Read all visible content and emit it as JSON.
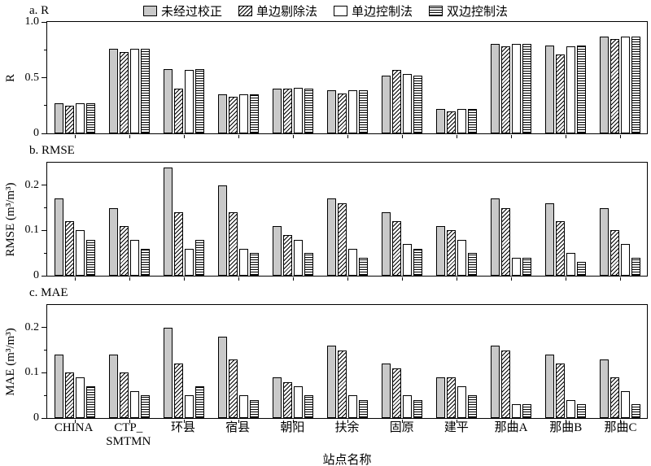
{
  "colors": {
    "bar_gray": "#c9c9c9",
    "bar_white": "#ffffff",
    "edge": "#000000"
  },
  "legend": {
    "items": [
      {
        "label": "未经过校正",
        "key": "uncorrected",
        "swatch": "solid-gray"
      },
      {
        "label": "单边剔除法",
        "key": "one-side-removal",
        "swatch": "diagonal-hatch"
      },
      {
        "label": "单边控制法",
        "key": "one-side-control",
        "swatch": "plain-white"
      },
      {
        "label": "双边控制法",
        "key": "two-side-control",
        "swatch": "horizontal-hatch"
      }
    ]
  },
  "xaxis": {
    "label": "站点名称",
    "tick_labels": [
      "CHINA",
      "CTP_\nSMTMN",
      "环县",
      "宿县",
      "朝阳",
      "扶余",
      "固原",
      "建平",
      "那曲A",
      "那曲B",
      "那曲C"
    ]
  },
  "chart_data": [
    {
      "type": "bar",
      "title": "a. R",
      "ylabel": "R",
      "ylim": [
        0,
        1.0
      ],
      "yticks": [
        0,
        0.5,
        1.0
      ],
      "ytick_labels": [
        "0",
        "0.5",
        "1.0"
      ],
      "yticks_minor": [
        0.25,
        0.75
      ],
      "grid": false,
      "legend_position": "top-center",
      "categories": [
        "CHINA",
        "CTP_SMTMN",
        "环县",
        "宿县",
        "朝阳",
        "扶余",
        "固原",
        "建平",
        "那曲A",
        "那曲B",
        "那曲C"
      ],
      "series": [
        {
          "name": "未经过校正",
          "key": "uncorrected",
          "values": [
            0.27,
            0.76,
            0.58,
            0.35,
            0.4,
            0.39,
            0.52,
            0.22,
            0.8,
            0.79,
            0.87
          ]
        },
        {
          "name": "单边剔除法",
          "key": "one-side-removal",
          "values": [
            0.25,
            0.73,
            0.4,
            0.33,
            0.4,
            0.36,
            0.57,
            0.2,
            0.78,
            0.71,
            0.85
          ]
        },
        {
          "name": "单边控制法",
          "key": "one-side-control",
          "values": [
            0.27,
            0.76,
            0.57,
            0.35,
            0.41,
            0.39,
            0.53,
            0.22,
            0.8,
            0.78,
            0.87
          ]
        },
        {
          "name": "双边控制法",
          "key": "two-side-control",
          "values": [
            0.27,
            0.76,
            0.58,
            0.35,
            0.4,
            0.39,
            0.52,
            0.22,
            0.8,
            0.79,
            0.87
          ]
        }
      ]
    },
    {
      "type": "bar",
      "title": "b. RMSE",
      "ylabel": "RMSE (m³/m³)",
      "ylim": [
        0,
        0.25
      ],
      "yticks": [
        0,
        0.1,
        0.2
      ],
      "ytick_labels": [
        "0",
        "0.1",
        "0.2"
      ],
      "yticks_minor": [
        0.05,
        0.15
      ],
      "grid": false,
      "categories": [
        "CHINA",
        "CTP_SMTMN",
        "环县",
        "宿县",
        "朝阳",
        "扶余",
        "固原",
        "建平",
        "那曲A",
        "那曲B",
        "那曲C"
      ],
      "series": [
        {
          "name": "未经过校正",
          "key": "uncorrected",
          "values": [
            0.17,
            0.15,
            0.24,
            0.2,
            0.11,
            0.17,
            0.14,
            0.11,
            0.17,
            0.16,
            0.15
          ]
        },
        {
          "name": "单边剔除法",
          "key": "one-side-removal",
          "values": [
            0.12,
            0.11,
            0.14,
            0.14,
            0.09,
            0.16,
            0.12,
            0.1,
            0.15,
            0.12,
            0.1
          ]
        },
        {
          "name": "单边控制法",
          "key": "one-side-control",
          "values": [
            0.1,
            0.08,
            0.06,
            0.06,
            0.08,
            0.06,
            0.07,
            0.08,
            0.04,
            0.05,
            0.07
          ]
        },
        {
          "name": "双边控制法",
          "key": "two-side-control",
          "values": [
            0.08,
            0.06,
            0.08,
            0.05,
            0.05,
            0.04,
            0.06,
            0.05,
            0.04,
            0.03,
            0.04
          ]
        }
      ]
    },
    {
      "type": "bar",
      "title": "c. MAE",
      "ylabel": "MAE (m³/m³)",
      "ylim": [
        0,
        0.25
      ],
      "yticks": [
        0,
        0.1,
        0.2
      ],
      "ytick_labels": [
        "0",
        "0.1",
        "0.2"
      ],
      "yticks_minor": [
        0.05,
        0.15
      ],
      "grid": false,
      "categories": [
        "CHINA",
        "CTP_SMTMN",
        "环县",
        "宿县",
        "朝阳",
        "扶余",
        "固原",
        "建平",
        "那曲A",
        "那曲B",
        "那曲C"
      ],
      "series": [
        {
          "name": "未经过校正",
          "key": "uncorrected",
          "values": [
            0.14,
            0.14,
            0.2,
            0.18,
            0.09,
            0.16,
            0.12,
            0.09,
            0.16,
            0.14,
            0.13
          ]
        },
        {
          "name": "单边剔除法",
          "key": "one-side-removal",
          "values": [
            0.1,
            0.1,
            0.12,
            0.13,
            0.08,
            0.15,
            0.11,
            0.09,
            0.15,
            0.12,
            0.09
          ]
        },
        {
          "name": "单边控制法",
          "key": "one-side-control",
          "values": [
            0.09,
            0.06,
            0.05,
            0.05,
            0.07,
            0.05,
            0.05,
            0.07,
            0.03,
            0.04,
            0.06
          ]
        },
        {
          "name": "双边控制法",
          "key": "two-side-control",
          "values": [
            0.07,
            0.05,
            0.07,
            0.04,
            0.05,
            0.04,
            0.04,
            0.05,
            0.03,
            0.03,
            0.03
          ]
        }
      ]
    }
  ]
}
